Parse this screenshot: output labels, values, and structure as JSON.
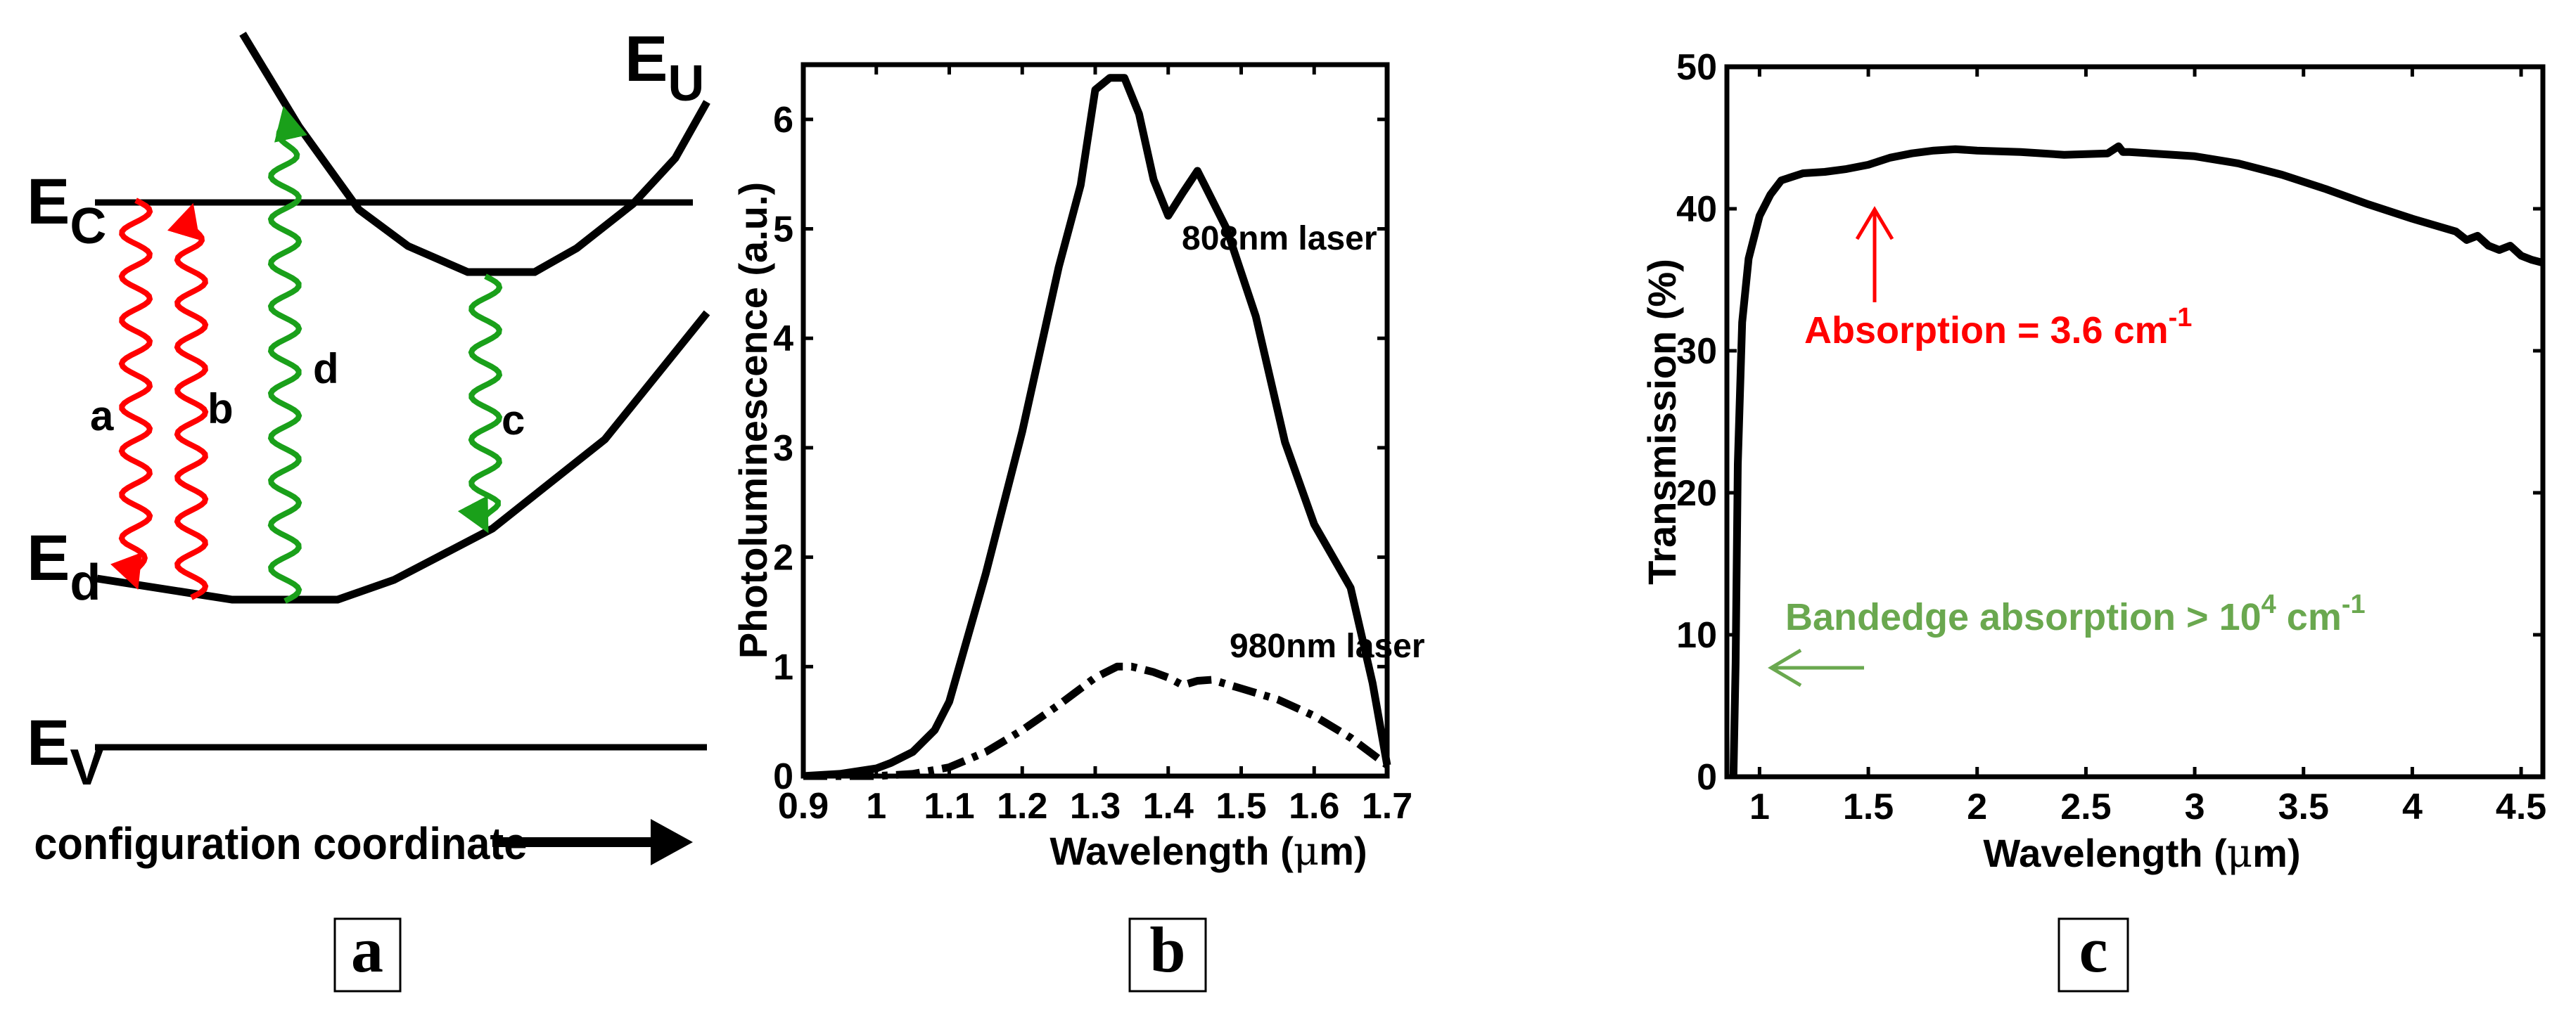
{
  "colors": {
    "red": "#ff0000",
    "green": "#1aa01a",
    "light_green": "#6aa84f",
    "black": "#000000"
  },
  "panel_a": {
    "label": "a",
    "levels": {
      "E_U": {
        "main": "E",
        "sub": "U"
      },
      "E_C": {
        "main": "E",
        "sub": "C"
      },
      "E_d": {
        "main": "E",
        "sub": "d"
      },
      "E_V": {
        "main": "E",
        "sub": "V"
      }
    },
    "transitions": [
      {
        "label": "a",
        "color": "red",
        "direction": "down"
      },
      {
        "label": "b",
        "color": "red",
        "direction": "up"
      },
      {
        "label": "d",
        "color": "green",
        "direction": "up"
      },
      {
        "label": "c",
        "color": "green",
        "direction": "down"
      }
    ],
    "axis_caption": "configuration coordinate"
  },
  "chart_data": [
    {
      "panel": "b",
      "type": "line",
      "xlabel_prefix": "Wavelength (",
      "xlabel_mu": "μ",
      "xlabel_suffix": "m)",
      "ylabel": "Photoluminescence (a.u.)",
      "xlim": [
        0.9,
        1.7
      ],
      "ylim": [
        0,
        6.5
      ],
      "xticks": [
        "0.9",
        "1",
        "1.1",
        "1.2",
        "1.3",
        "1.4",
        "1.5",
        "1.6",
        "1.7"
      ],
      "yticks": [
        "0",
        "1",
        "2",
        "3",
        "4",
        "5",
        "6"
      ],
      "series": [
        {
          "name": "808nm laser",
          "style": "solid",
          "x": [
            0.9,
            0.95,
            1.0,
            1.02,
            1.05,
            1.08,
            1.1,
            1.15,
            1.2,
            1.25,
            1.28,
            1.3,
            1.32,
            1.34,
            1.36,
            1.38,
            1.4,
            1.42,
            1.44,
            1.45,
            1.48,
            1.52,
            1.56,
            1.6,
            1.65,
            1.68,
            1.7
          ],
          "y": [
            0.0,
            0.02,
            0.07,
            0.12,
            0.22,
            0.42,
            0.68,
            1.85,
            3.15,
            4.65,
            5.4,
            6.27,
            6.38,
            6.38,
            6.05,
            5.45,
            5.12,
            5.33,
            5.53,
            5.4,
            5.0,
            4.2,
            3.05,
            2.3,
            1.72,
            0.85,
            0.1
          ]
        },
        {
          "name": "980nm laser",
          "style": "dashdot",
          "x": [
            0.9,
            1.0,
            1.05,
            1.1,
            1.15,
            1.2,
            1.25,
            1.3,
            1.33,
            1.35,
            1.38,
            1.4,
            1.42,
            1.44,
            1.46,
            1.5,
            1.55,
            1.6,
            1.65,
            1.7
          ],
          "y": [
            0.0,
            0.0,
            0.02,
            0.08,
            0.22,
            0.42,
            0.65,
            0.9,
            1.0,
            1.0,
            0.95,
            0.9,
            0.83,
            0.87,
            0.88,
            0.8,
            0.7,
            0.55,
            0.35,
            0.1
          ]
        }
      ],
      "annotations": [
        "808nm laser",
        "980nm laser"
      ]
    },
    {
      "panel": "c",
      "type": "line",
      "xlabel_prefix": "Wavelength (",
      "xlabel_mu": "μ",
      "xlabel_suffix": "m)",
      "ylabel": "Transmission (%)",
      "xlim": [
        0.85,
        4.6
      ],
      "ylim": [
        0,
        50
      ],
      "xticks": [
        "1",
        "1.5",
        "2",
        "2.5",
        "3",
        "3.5",
        "4",
        "4.5"
      ],
      "yticks": [
        "0",
        "10",
        "20",
        "30",
        "40",
        "50"
      ],
      "series": [
        {
          "name": "Transmission",
          "style": "solid",
          "x": [
            0.88,
            0.89,
            0.9,
            0.92,
            0.95,
            1.0,
            1.05,
            1.1,
            1.2,
            1.3,
            1.4,
            1.5,
            1.6,
            1.7,
            1.8,
            1.9,
            2.0,
            2.2,
            2.4,
            2.6,
            2.65,
            2.67,
            2.7,
            2.8,
            3.0,
            3.2,
            3.4,
            3.6,
            3.8,
            4.0,
            4.2,
            4.25,
            4.3,
            4.35,
            4.4,
            4.45,
            4.5,
            4.55,
            4.6
          ],
          "y": [
            0.0,
            8.0,
            22.0,
            32.0,
            36.5,
            39.5,
            41.0,
            42.0,
            42.5,
            42.6,
            42.8,
            43.1,
            43.6,
            43.9,
            44.1,
            44.2,
            44.1,
            44.0,
            43.8,
            43.9,
            44.4,
            44.0,
            44.0,
            43.9,
            43.7,
            43.2,
            42.4,
            41.4,
            40.3,
            39.3,
            38.4,
            37.8,
            38.1,
            37.4,
            37.1,
            37.4,
            36.7,
            36.4,
            36.2
          ]
        }
      ],
      "annotations": {
        "absorption": {
          "prefix": "Absorption = 3.6 cm",
          "sup": "-1",
          "color": "red"
        },
        "bandedge": {
          "prefix": "Bandedge absorption > 10",
          "sup1": "4",
          "mid": " cm",
          "sup2": "-1",
          "color": "light_green"
        }
      }
    }
  ],
  "panel_labels": {
    "b": "b",
    "c": "c"
  }
}
